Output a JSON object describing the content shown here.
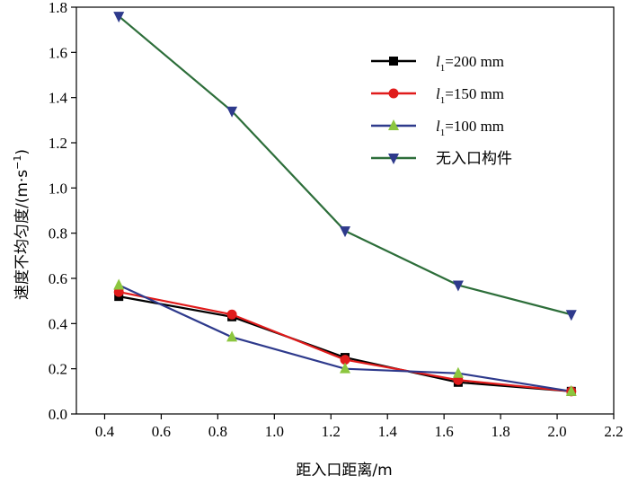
{
  "chart_data": {
    "type": "line",
    "xlabel": "距入口距离/m",
    "ylabel_main": "速度不均匀度/(m·s",
    "ylabel_sup": "−1",
    "ylabel_end": ")",
    "xlim": [
      0.3,
      2.2
    ],
    "ylim": [
      0.0,
      1.8
    ],
    "xticks": [
      "0.4",
      "0.6",
      "0.8",
      "1.0",
      "1.2",
      "1.4",
      "1.6",
      "1.8",
      "2.0",
      "2.2"
    ],
    "yticks": [
      "0.0",
      "0.2",
      "0.4",
      "0.6",
      "0.8",
      "1.0",
      "1.2",
      "1.4",
      "1.6",
      "1.8"
    ],
    "x": [
      0.45,
      0.85,
      1.25,
      1.65,
      2.05
    ],
    "series": [
      {
        "name": "l1=200 mm",
        "legend_var": "l",
        "legend_sub": "1",
        "legend_rest": "=200 mm",
        "values": [
          0.52,
          0.43,
          0.25,
          0.14,
          0.1
        ],
        "line_color": "#000000",
        "marker_color": "#000000",
        "marker": "square"
      },
      {
        "name": "l1=150 mm",
        "legend_var": "l",
        "legend_sub": "1",
        "legend_rest": "=150 mm",
        "values": [
          0.54,
          0.44,
          0.24,
          0.15,
          0.1
        ],
        "line_color": "#e01b1b",
        "marker_color": "#e01b1b",
        "marker": "circle"
      },
      {
        "name": "l1=100 mm",
        "legend_var": "l",
        "legend_sub": "1",
        "legend_rest": "=100 mm",
        "values": [
          0.57,
          0.34,
          0.2,
          0.18,
          0.1
        ],
        "line_color": "#2e3a8c",
        "marker_color": "#8cc63f",
        "marker": "triangle-up"
      },
      {
        "name": "无入口构件",
        "legend_var": "",
        "legend_sub": "",
        "legend_rest": "无入口构件",
        "values": [
          1.76,
          1.34,
          0.81,
          0.57,
          0.44
        ],
        "line_color": "#2d6e3a",
        "marker_color": "#2e3a8c",
        "marker": "triangle-down"
      }
    ],
    "legend_position": "top-right"
  }
}
